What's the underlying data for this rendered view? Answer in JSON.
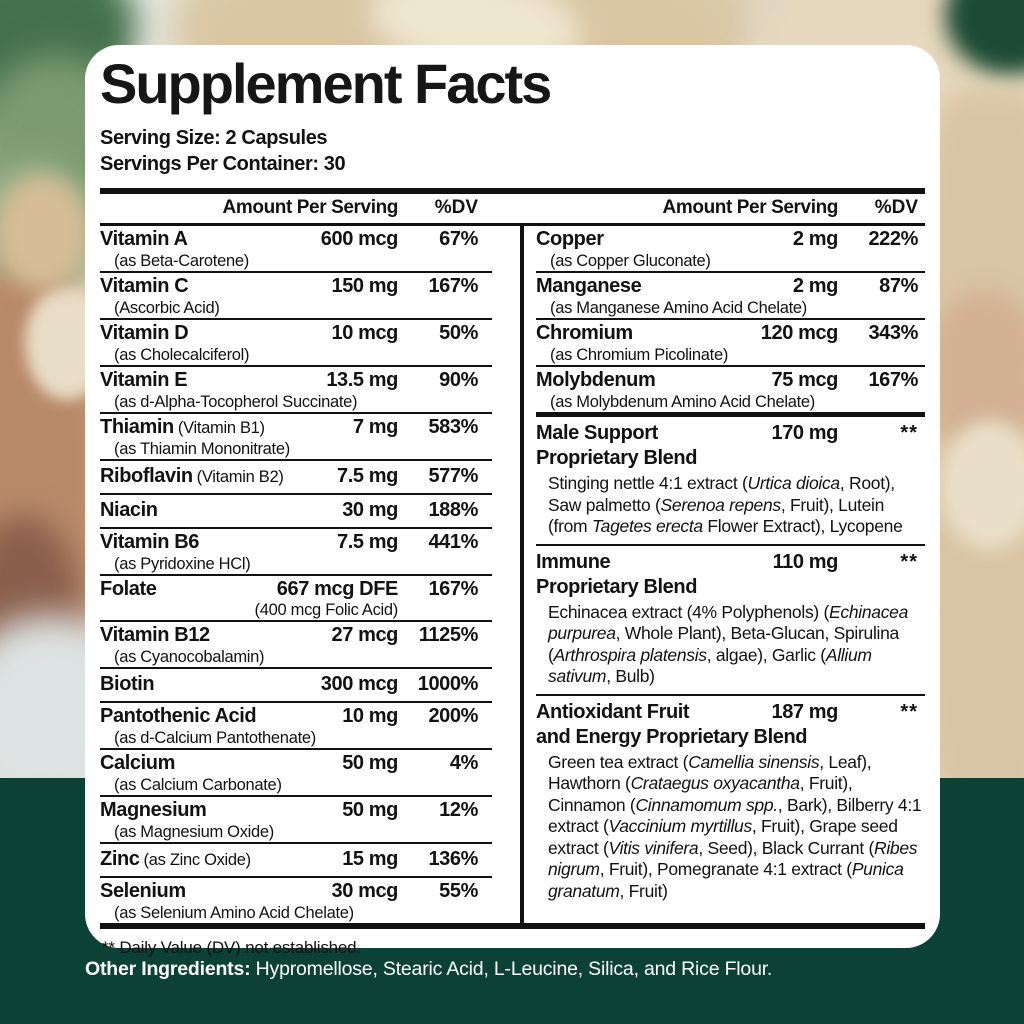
{
  "colors": {
    "panel_bg": "#ffffff",
    "text": "#121212",
    "band_green": "#0c4136",
    "footer_text": "#ffffff"
  },
  "panel": {
    "title": "Supplement Facts",
    "serving_size": "Serving Size: 2 Capsules",
    "servings_per_container": "Servings Per Container: 30",
    "header": {
      "amount": "Amount Per Serving",
      "dv": "%DV"
    },
    "left_rows": [
      {
        "name": "Vitamin A",
        "sub": "(as Beta-Carotene)",
        "amount": "600 mcg",
        "dv": "67%"
      },
      {
        "name": "Vitamin C",
        "sub": "(Ascorbic Acid)",
        "amount": "150 mg",
        "dv": "167%"
      },
      {
        "name": "Vitamin D",
        "sub": "(as Cholecalciferol)",
        "amount": "10 mcg",
        "dv": "50%"
      },
      {
        "name": "Vitamin E",
        "sub": "(as d-Alpha-Tocopherol Succinate)",
        "amount": "13.5 mg",
        "dv": "90%"
      },
      {
        "name": "Thiamin",
        "note": "(Vitamin B1)",
        "sub": "(as Thiamin Mononitrate)",
        "amount": "7 mg",
        "dv": "583%"
      },
      {
        "name": "Riboflavin",
        "note": "(Vitamin B2)",
        "amount": "7.5 mg",
        "dv": "577%"
      },
      {
        "name": "Niacin",
        "amount": "30 mg",
        "dv": "188%"
      },
      {
        "name": "Vitamin B6",
        "sub": "(as Pyridoxine HCl)",
        "amount": "7.5 mg",
        "dv": "441%"
      },
      {
        "name": "Folate",
        "amount": "667 mcg DFE",
        "amount_sub": "(400 mcg Folic Acid)",
        "dv": "167%"
      },
      {
        "name": "Vitamin B12",
        "sub": "(as Cyanocobalamin)",
        "amount": "27 mcg",
        "dv": "1125%"
      },
      {
        "name": "Biotin",
        "amount": "300 mcg",
        "dv": "1000%"
      },
      {
        "name": "Pantothenic Acid",
        "sub": "(as d-Calcium Pantothenate)",
        "amount": "10 mg",
        "dv": "200%"
      },
      {
        "name": "Calcium",
        "sub": "(as Calcium Carbonate)",
        "amount": "50 mg",
        "dv": "4%"
      },
      {
        "name": "Magnesium",
        "sub": "(as Magnesium Oxide)",
        "amount": "50 mg",
        "dv": "12%"
      },
      {
        "name": "Zinc",
        "note": "(as Zinc Oxide)",
        "amount": "15 mg",
        "dv": "136%"
      },
      {
        "name": "Selenium",
        "sub": "(as Selenium Amino Acid Chelate)",
        "amount": "30 mcg",
        "dv": "55%"
      }
    ],
    "right_rows": [
      {
        "name": "Copper",
        "sub": "(as Copper Gluconate)",
        "amount": "2 mg",
        "dv": "222%"
      },
      {
        "name": "Manganese",
        "sub": "(as Manganese Amino Acid Chelate)",
        "amount": "2 mg",
        "dv": "87%"
      },
      {
        "name": "Chromium",
        "sub": "(as Chromium Picolinate)",
        "amount": "120 mcg",
        "dv": "343%"
      },
      {
        "name": "Molybdenum",
        "sub": "(as Molybdenum Amino Acid Chelate)",
        "amount": "75 mcg",
        "dv": "167%"
      }
    ],
    "blends": [
      {
        "name1": "Male Support",
        "name2": "Proprietary Blend",
        "amount": "170 mg",
        "dv": "**",
        "desc": [
          {
            "t": "Stinging nettle 4:1 extract (",
            "i": false
          },
          {
            "t": "Urtica dioica",
            "i": true
          },
          {
            "t": ", Root), Saw palmetto (",
            "i": false
          },
          {
            "t": "Serenoa repens",
            "i": true
          },
          {
            "t": ", Fruit), Lutein (from ",
            "i": false
          },
          {
            "t": "Tagetes erecta",
            "i": true
          },
          {
            "t": " Flower Extract), Lycopene",
            "i": false
          }
        ]
      },
      {
        "name1": "Immune",
        "name2": "Proprietary Blend",
        "amount": "110 mg",
        "dv": "**",
        "desc": [
          {
            "t": "Echinacea extract (4% Polyphenols) (",
            "i": false
          },
          {
            "t": "Echinacea purpurea",
            "i": true
          },
          {
            "t": ", Whole Plant), Beta-Glucan, Spirulina (",
            "i": false
          },
          {
            "t": "Arthrospira platensis",
            "i": true
          },
          {
            "t": ", algae), Garlic (",
            "i": false
          },
          {
            "t": "Allium sativum",
            "i": true
          },
          {
            "t": ", Bulb)",
            "i": false
          }
        ]
      },
      {
        "name1": "Antioxidant Fruit",
        "name2": "and Energy Proprietary Blend",
        "amount": "187 mg",
        "dv": "**",
        "desc": [
          {
            "t": "Green tea extract (",
            "i": false
          },
          {
            "t": "Camellia sinensis",
            "i": true
          },
          {
            "t": ", Leaf), Hawthorn (",
            "i": false
          },
          {
            "t": "Crataegus oxyacantha",
            "i": true
          },
          {
            "t": ", Fruit), Cinnamon (",
            "i": false
          },
          {
            "t": "Cinnamomum spp.",
            "i": true
          },
          {
            "t": ", Bark), Bilberry 4:1 extract (",
            "i": false
          },
          {
            "t": "Vaccinium myrtillus",
            "i": true
          },
          {
            "t": ", Fruit), Grape seed extract (",
            "i": false
          },
          {
            "t": "Vitis vinifera",
            "i": true
          },
          {
            "t": ", Seed), Black Currant (",
            "i": false
          },
          {
            "t": "Ribes nigrum",
            "i": true
          },
          {
            "t": ", Fruit), Pomegranate 4:1 extract (",
            "i": false
          },
          {
            "t": "Punica granatum",
            "i": true
          },
          {
            "t": ", Fruit)",
            "i": false
          }
        ]
      }
    ],
    "footnote": "** Daily Value (DV) not established."
  },
  "footer": {
    "other_ingredients_label": "Other Ingredients:",
    "other_ingredients_text": " Hypromellose, Stearic Acid, L-Leucine, Silica, and Rice Flour."
  }
}
